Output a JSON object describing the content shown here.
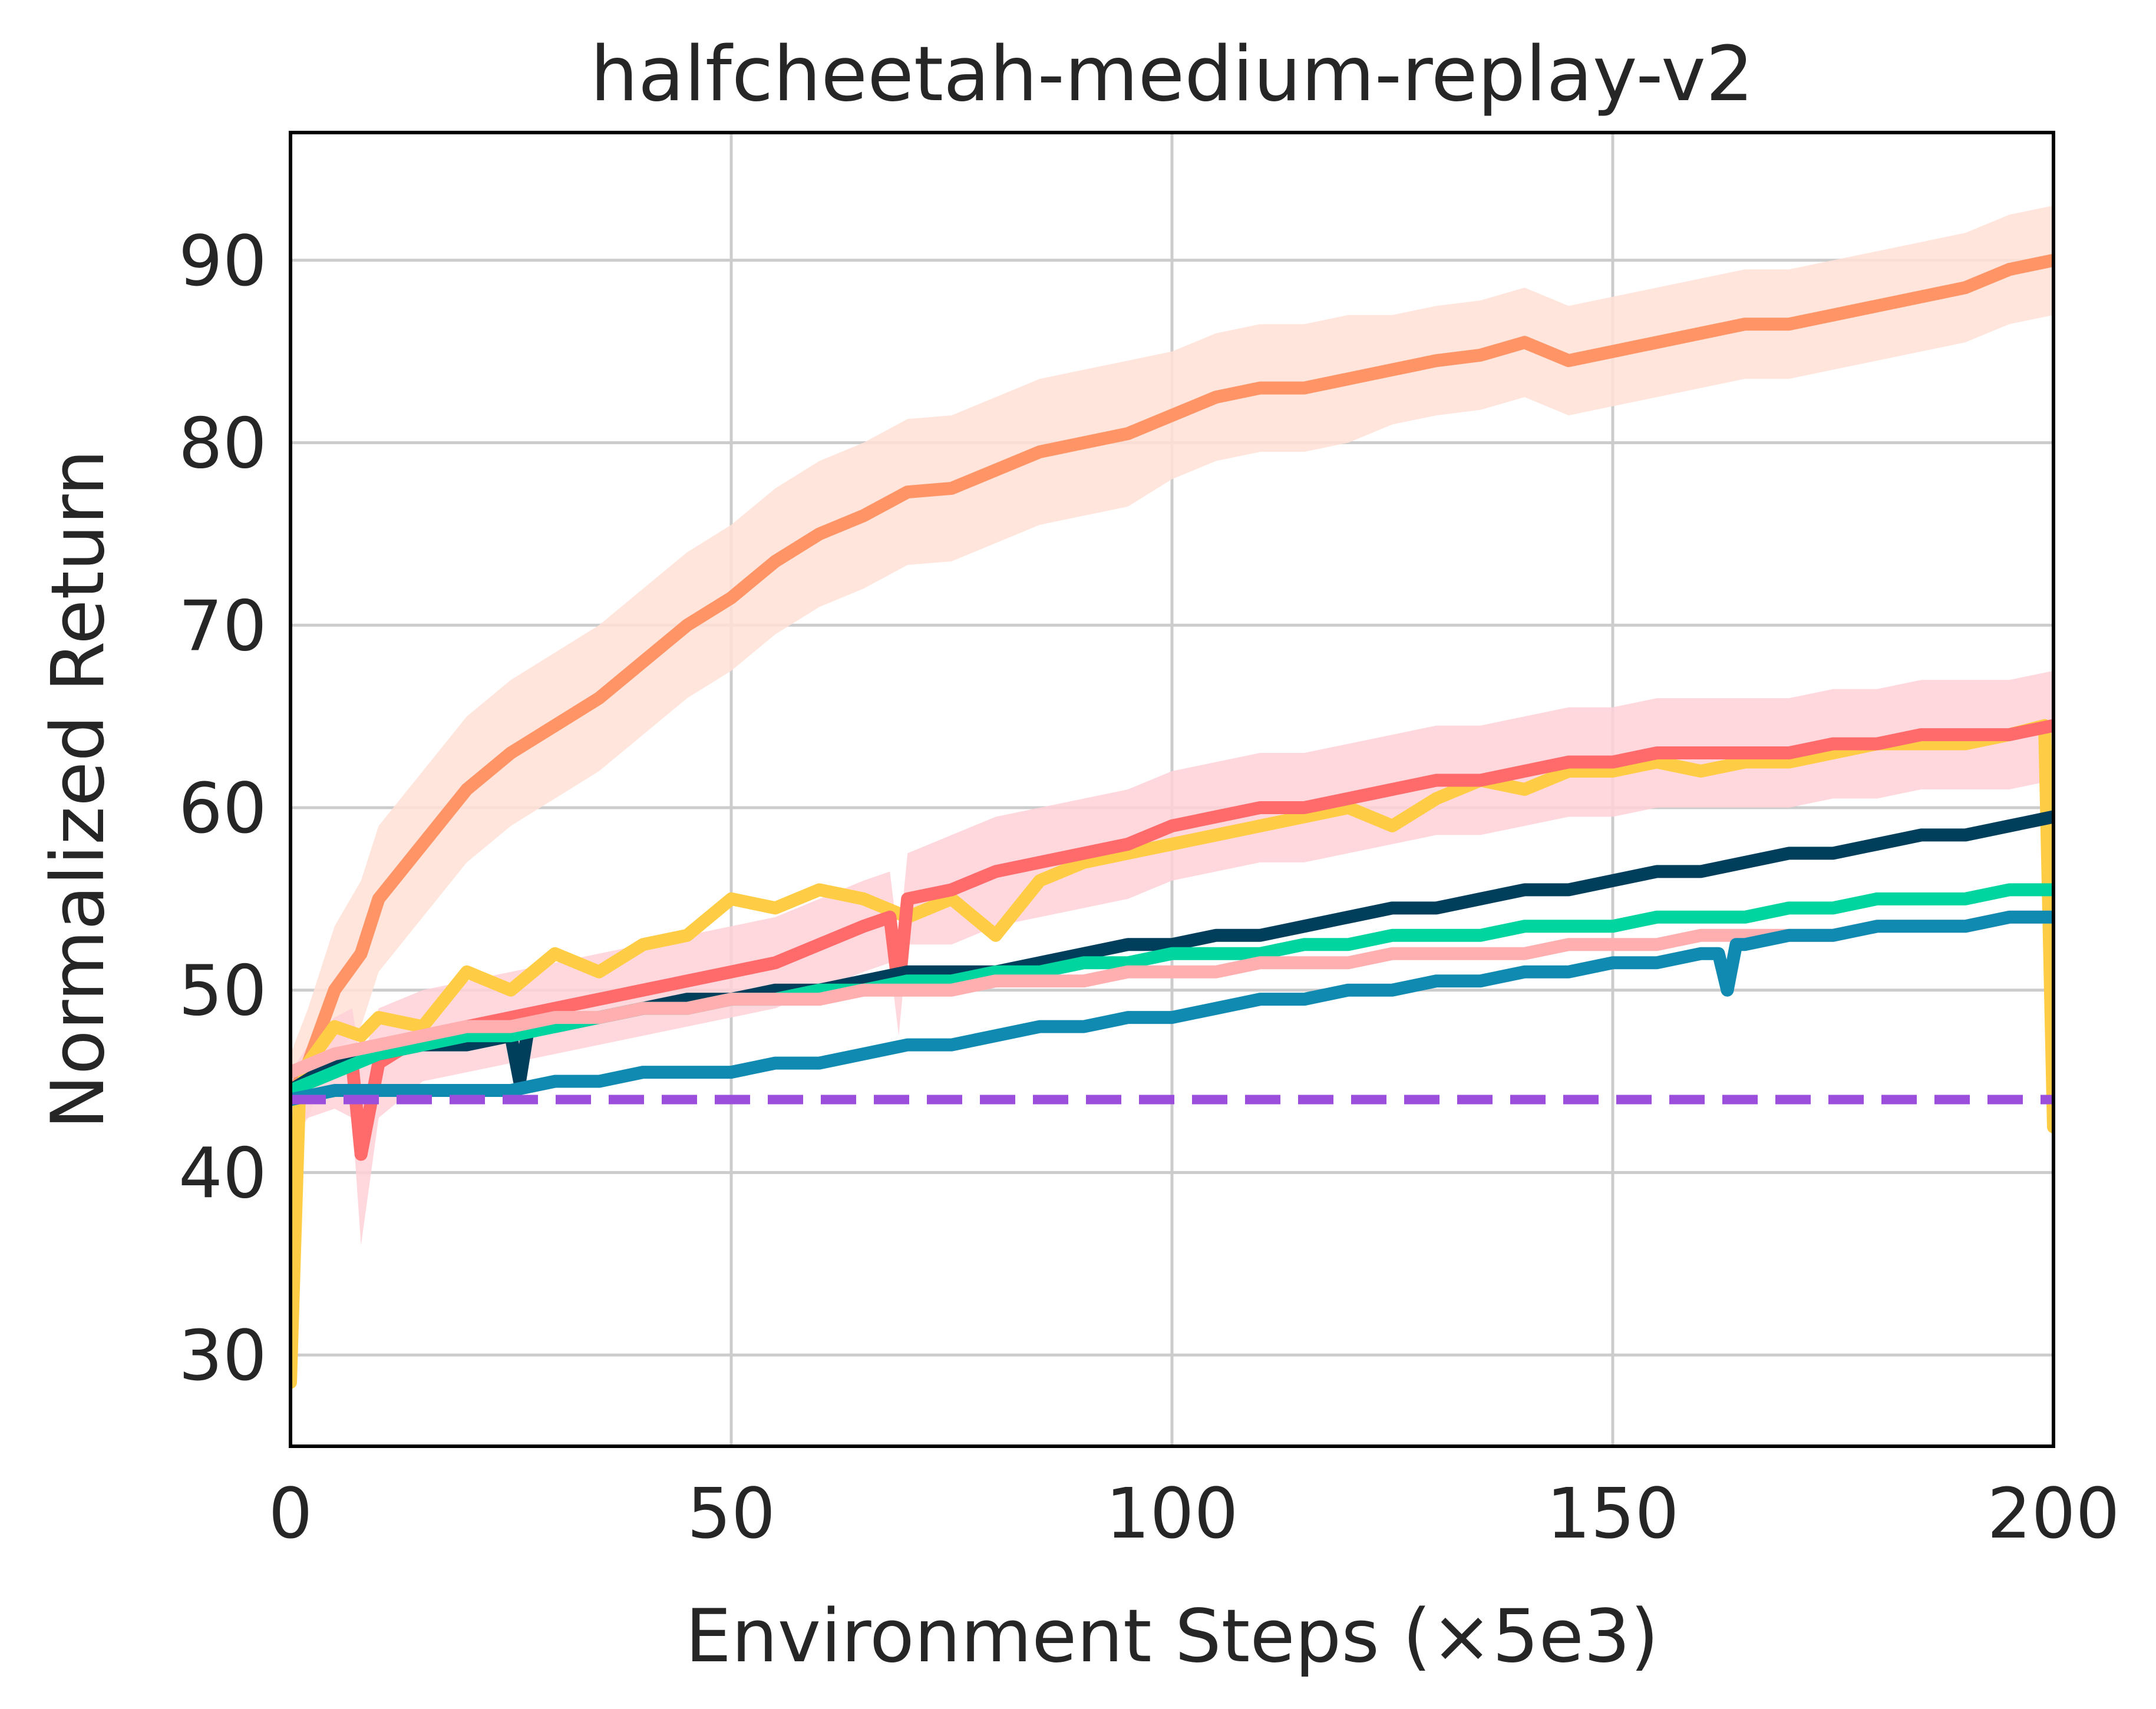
{
  "chart_data": {
    "type": "line",
    "title": "halfcheetah-medium-replay-v2",
    "xlabel": "Environment Steps (×5e3)",
    "ylabel": "Normalized Return",
    "xlim": [
      0,
      200
    ],
    "ylim": [
      25,
      97
    ],
    "xticks": [
      0,
      50,
      100,
      150,
      200
    ],
    "xtick_labels": [
      "0",
      "50",
      "100",
      "150",
      "200"
    ],
    "yticks": [
      30,
      40,
      50,
      60,
      70,
      80,
      90
    ],
    "ytick_labels": [
      "30",
      "40",
      "50",
      "60",
      "70",
      "80",
      "90"
    ],
    "grid": true,
    "legend": "none",
    "series": [
      {
        "color": "#ff9566",
        "band_color": "#ffe1d6",
        "x": [
          0,
          2,
          5,
          8,
          10,
          15,
          20,
          25,
          30,
          35,
          40,
          45,
          50,
          55,
          60,
          65,
          70,
          75,
          80,
          85,
          90,
          95,
          100,
          105,
          110,
          115,
          120,
          125,
          130,
          135,
          140,
          145,
          150,
          155,
          160,
          165,
          170,
          175,
          180,
          185,
          190,
          195,
          200
        ],
        "y": [
          44,
          46,
          50,
          52,
          55,
          58,
          61,
          63,
          64.5,
          66,
          68,
          70,
          71.5,
          73.5,
          75,
          76,
          77.3,
          77.5,
          78.5,
          79.5,
          80,
          80.5,
          81.5,
          82.5,
          83,
          83,
          83.5,
          84,
          84.5,
          84.8,
          85.5,
          84.5,
          85,
          85.5,
          86,
          86.5,
          86.5,
          87,
          87.5,
          88,
          88.5,
          89.5,
          90
        ],
        "band": [
          2.5,
          3,
          3.5,
          4,
          4,
          4,
          4,
          4,
          4,
          4,
          4,
          4,
          4,
          4,
          4,
          4,
          4,
          4,
          4,
          4,
          4,
          4,
          3.5,
          3.5,
          3.5,
          3.5,
          3.5,
          3,
          3,
          3,
          3,
          3,
          3,
          3,
          3,
          3,
          3,
          3,
          3,
          3,
          3,
          3,
          3
        ]
      },
      {
        "color": "#ffcd45",
        "x": [
          0,
          1,
          2,
          5,
          8,
          10,
          15,
          20,
          25,
          30,
          35,
          40,
          45,
          50,
          55,
          60,
          65,
          70,
          75,
          80,
          85,
          90,
          95,
          100,
          105,
          110,
          115,
          120,
          125,
          130,
          135,
          140,
          145,
          150,
          155,
          160,
          165,
          170,
          175,
          180,
          185,
          190,
          195,
          199,
          200
        ],
        "y": [
          28.5,
          44,
          46,
          48,
          47.5,
          48.5,
          48,
          51,
          50,
          52,
          51,
          52.5,
          53,
          55,
          54.5,
          55.5,
          55,
          54,
          55,
          53,
          56,
          57,
          57.5,
          58,
          58.5,
          59,
          59.5,
          60,
          59,
          60.5,
          61.5,
          61,
          62,
          62,
          62.5,
          62,
          62.5,
          62.5,
          63,
          63.5,
          63.5,
          63.5,
          64,
          64.5,
          42.5
        ]
      },
      {
        "color": "#ff6b6b",
        "band_color": "#ffd1d8",
        "x": [
          0,
          2,
          5,
          7,
          8,
          10,
          15,
          20,
          25,
          30,
          35,
          40,
          45,
          50,
          55,
          60,
          65,
          68,
          69,
          70,
          75,
          80,
          85,
          90,
          95,
          100,
          105,
          110,
          115,
          120,
          125,
          130,
          135,
          140,
          145,
          150,
          155,
          160,
          165,
          170,
          175,
          180,
          185,
          190,
          195,
          200
        ],
        "y": [
          44,
          45,
          46,
          46,
          41,
          46,
          47.5,
          48,
          48.5,
          49,
          49.5,
          50,
          50.5,
          51,
          51.5,
          52.5,
          53.5,
          54,
          50,
          55,
          55.5,
          56.5,
          57,
          57.5,
          58,
          59,
          59.5,
          60,
          60,
          60.5,
          61,
          61.5,
          61.5,
          62,
          62.5,
          62.5,
          63,
          63,
          63,
          63,
          63.5,
          63.5,
          64,
          64,
          64,
          64.5
        ],
        "band": [
          1.5,
          2,
          2.5,
          3,
          5,
          3,
          2.5,
          2.5,
          2.5,
          2.5,
          2.5,
          2.5,
          2.5,
          2.5,
          2.5,
          2.5,
          2.5,
          2.5,
          2.5,
          2.5,
          3,
          3,
          3,
          3,
          3,
          3,
          3,
          3,
          3,
          3,
          3,
          3,
          3,
          3,
          3,
          3,
          3,
          3,
          3,
          3,
          3,
          3,
          3,
          3,
          3,
          3
        ]
      },
      {
        "color": "#003f5c",
        "x": [
          0,
          5,
          10,
          15,
          20,
          25,
          26,
          27,
          30,
          35,
          40,
          45,
          50,
          55,
          60,
          65,
          70,
          75,
          80,
          85,
          90,
          95,
          100,
          105,
          110,
          115,
          120,
          125,
          130,
          135,
          140,
          145,
          150,
          155,
          160,
          165,
          170,
          175,
          180,
          185,
          190,
          195,
          200
        ],
        "y": [
          44.5,
          46,
          46.5,
          47,
          47,
          47.5,
          45,
          48,
          48,
          48.5,
          49,
          49.5,
          49.5,
          50,
          50,
          50.5,
          51,
          51,
          51,
          51.5,
          52,
          52.5,
          52.5,
          53,
          53,
          53.5,
          54,
          54.5,
          54.5,
          55,
          55.5,
          55.5,
          56,
          56.5,
          56.5,
          57,
          57.5,
          57.5,
          58,
          58.5,
          58.5,
          59,
          59.5
        ]
      },
      {
        "color": "#00d5a0",
        "x": [
          0,
          5,
          10,
          15,
          20,
          25,
          30,
          35,
          40,
          45,
          50,
          55,
          60,
          65,
          70,
          75,
          80,
          85,
          90,
          95,
          100,
          105,
          110,
          115,
          120,
          125,
          130,
          135,
          140,
          145,
          150,
          155,
          160,
          165,
          170,
          175,
          180,
          185,
          190,
          195,
          200
        ],
        "y": [
          44.5,
          45.5,
          46.5,
          47,
          47.5,
          47.5,
          48,
          48.5,
          49,
          49,
          49.5,
          49.5,
          50,
          50,
          50.5,
          50.5,
          51,
          51,
          51.5,
          51.5,
          52,
          52,
          52,
          52.5,
          52.5,
          53,
          53,
          53,
          53.5,
          53.5,
          53.5,
          54,
          54,
          54,
          54.5,
          54.5,
          55,
          55,
          55,
          55.5,
          55.5
        ]
      },
      {
        "color": "#ffafb0",
        "x": [
          0,
          5,
          10,
          15,
          20,
          25,
          30,
          35,
          40,
          45,
          50,
          55,
          60,
          65,
          70,
          75,
          80,
          85,
          90,
          95,
          100,
          105,
          110,
          115,
          120,
          125,
          130,
          135,
          140,
          145,
          150,
          155,
          160,
          165,
          170,
          175,
          180,
          185,
          190,
          195,
          200
        ],
        "y": [
          45.5,
          46.5,
          47,
          47.5,
          48,
          48,
          48.5,
          48.5,
          49,
          49,
          49.5,
          49.5,
          49.5,
          50,
          50,
          50,
          50.5,
          50.5,
          50.5,
          51,
          51,
          51,
          51.5,
          51.5,
          51.5,
          52,
          52,
          52,
          52,
          52.5,
          52.5,
          52.5,
          53,
          53,
          53,
          53,
          53.5,
          53.5,
          53.5,
          54,
          54
        ]
      },
      {
        "color": "#118ab2",
        "x": [
          0,
          5,
          10,
          15,
          20,
          25,
          30,
          35,
          40,
          45,
          50,
          55,
          60,
          65,
          70,
          75,
          80,
          85,
          90,
          95,
          100,
          105,
          110,
          115,
          120,
          125,
          130,
          135,
          140,
          145,
          150,
          155,
          160,
          162,
          163,
          164,
          165,
          170,
          175,
          180,
          185,
          190,
          195,
          200
        ],
        "y": [
          44,
          44.5,
          44.5,
          44.5,
          44.5,
          44.5,
          45,
          45,
          45.5,
          45.5,
          45.5,
          46,
          46,
          46.5,
          47,
          47,
          47.5,
          48,
          48,
          48.5,
          48.5,
          49,
          49.5,
          49.5,
          50,
          50,
          50.5,
          50.5,
          51,
          51,
          51.5,
          51.5,
          52,
          52,
          50,
          52.5,
          52.5,
          53,
          53,
          53.5,
          53.5,
          53.5,
          54,
          54
        ]
      },
      {
        "color": "#9b4ddb",
        "dashed": true,
        "x": [
          0,
          200
        ],
        "y": [
          44,
          44
        ]
      }
    ]
  }
}
